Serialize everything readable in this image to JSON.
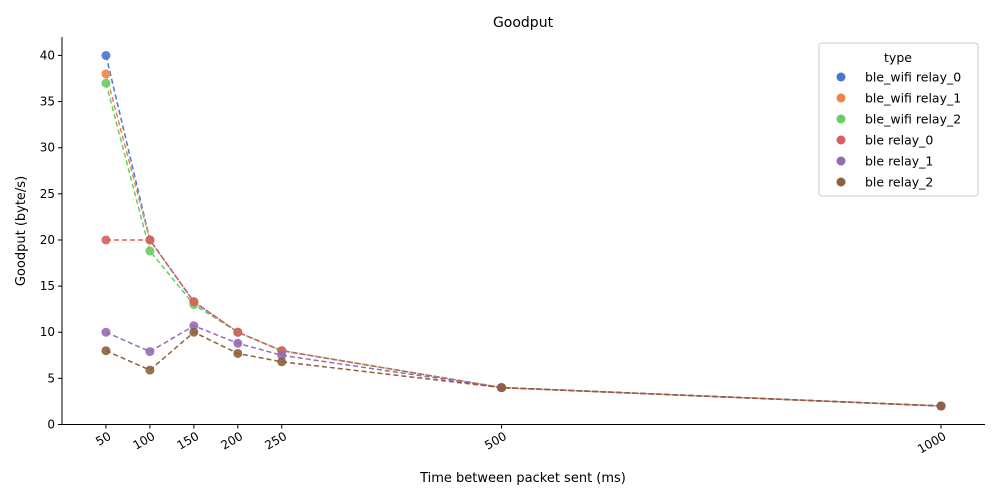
{
  "chart_data": {
    "type": "line",
    "title": "Goodput",
    "xlabel": "Time between packet sent (ms)",
    "ylabel": "Goodput (byte/s)",
    "x": [
      50,
      100,
      150,
      200,
      250,
      500,
      1000
    ],
    "x_tick_labels": [
      "50",
      "100",
      "150",
      "200",
      "250",
      "500",
      "1000"
    ],
    "xlim": [
      0,
      1050
    ],
    "ylim": [
      0,
      42
    ],
    "y_ticks": [
      0,
      5,
      10,
      15,
      20,
      25,
      30,
      35,
      40
    ],
    "y_tick_labels": [
      "0",
      "5",
      "10",
      "15",
      "20",
      "25",
      "30",
      "35",
      "40"
    ],
    "grid": false,
    "legend": {
      "title": "type",
      "position": "top-right"
    },
    "series": [
      {
        "name": "ble_wifi relay_0",
        "color": "#4878d0",
        "values": [
          40,
          20,
          13.3,
          10,
          8,
          4,
          2
        ]
      },
      {
        "name": "ble_wifi relay_1",
        "color": "#ee854a",
        "values": [
          38,
          20,
          13.3,
          10,
          8,
          4,
          2
        ]
      },
      {
        "name": "ble_wifi relay_2",
        "color": "#6acc64",
        "values": [
          37,
          18.8,
          13,
          10,
          8,
          4,
          2
        ]
      },
      {
        "name": "ble relay_0",
        "color": "#d65f5f",
        "values": [
          20,
          20,
          13.3,
          10,
          8,
          4,
          2
        ]
      },
      {
        "name": "ble relay_1",
        "color": "#956cb4",
        "values": [
          10,
          7.9,
          10.7,
          8.8,
          7.5,
          4,
          2
        ]
      },
      {
        "name": "ble relay_2",
        "color": "#8c613c",
        "values": [
          8,
          5.9,
          10,
          7.7,
          6.8,
          4,
          2
        ]
      }
    ]
  }
}
